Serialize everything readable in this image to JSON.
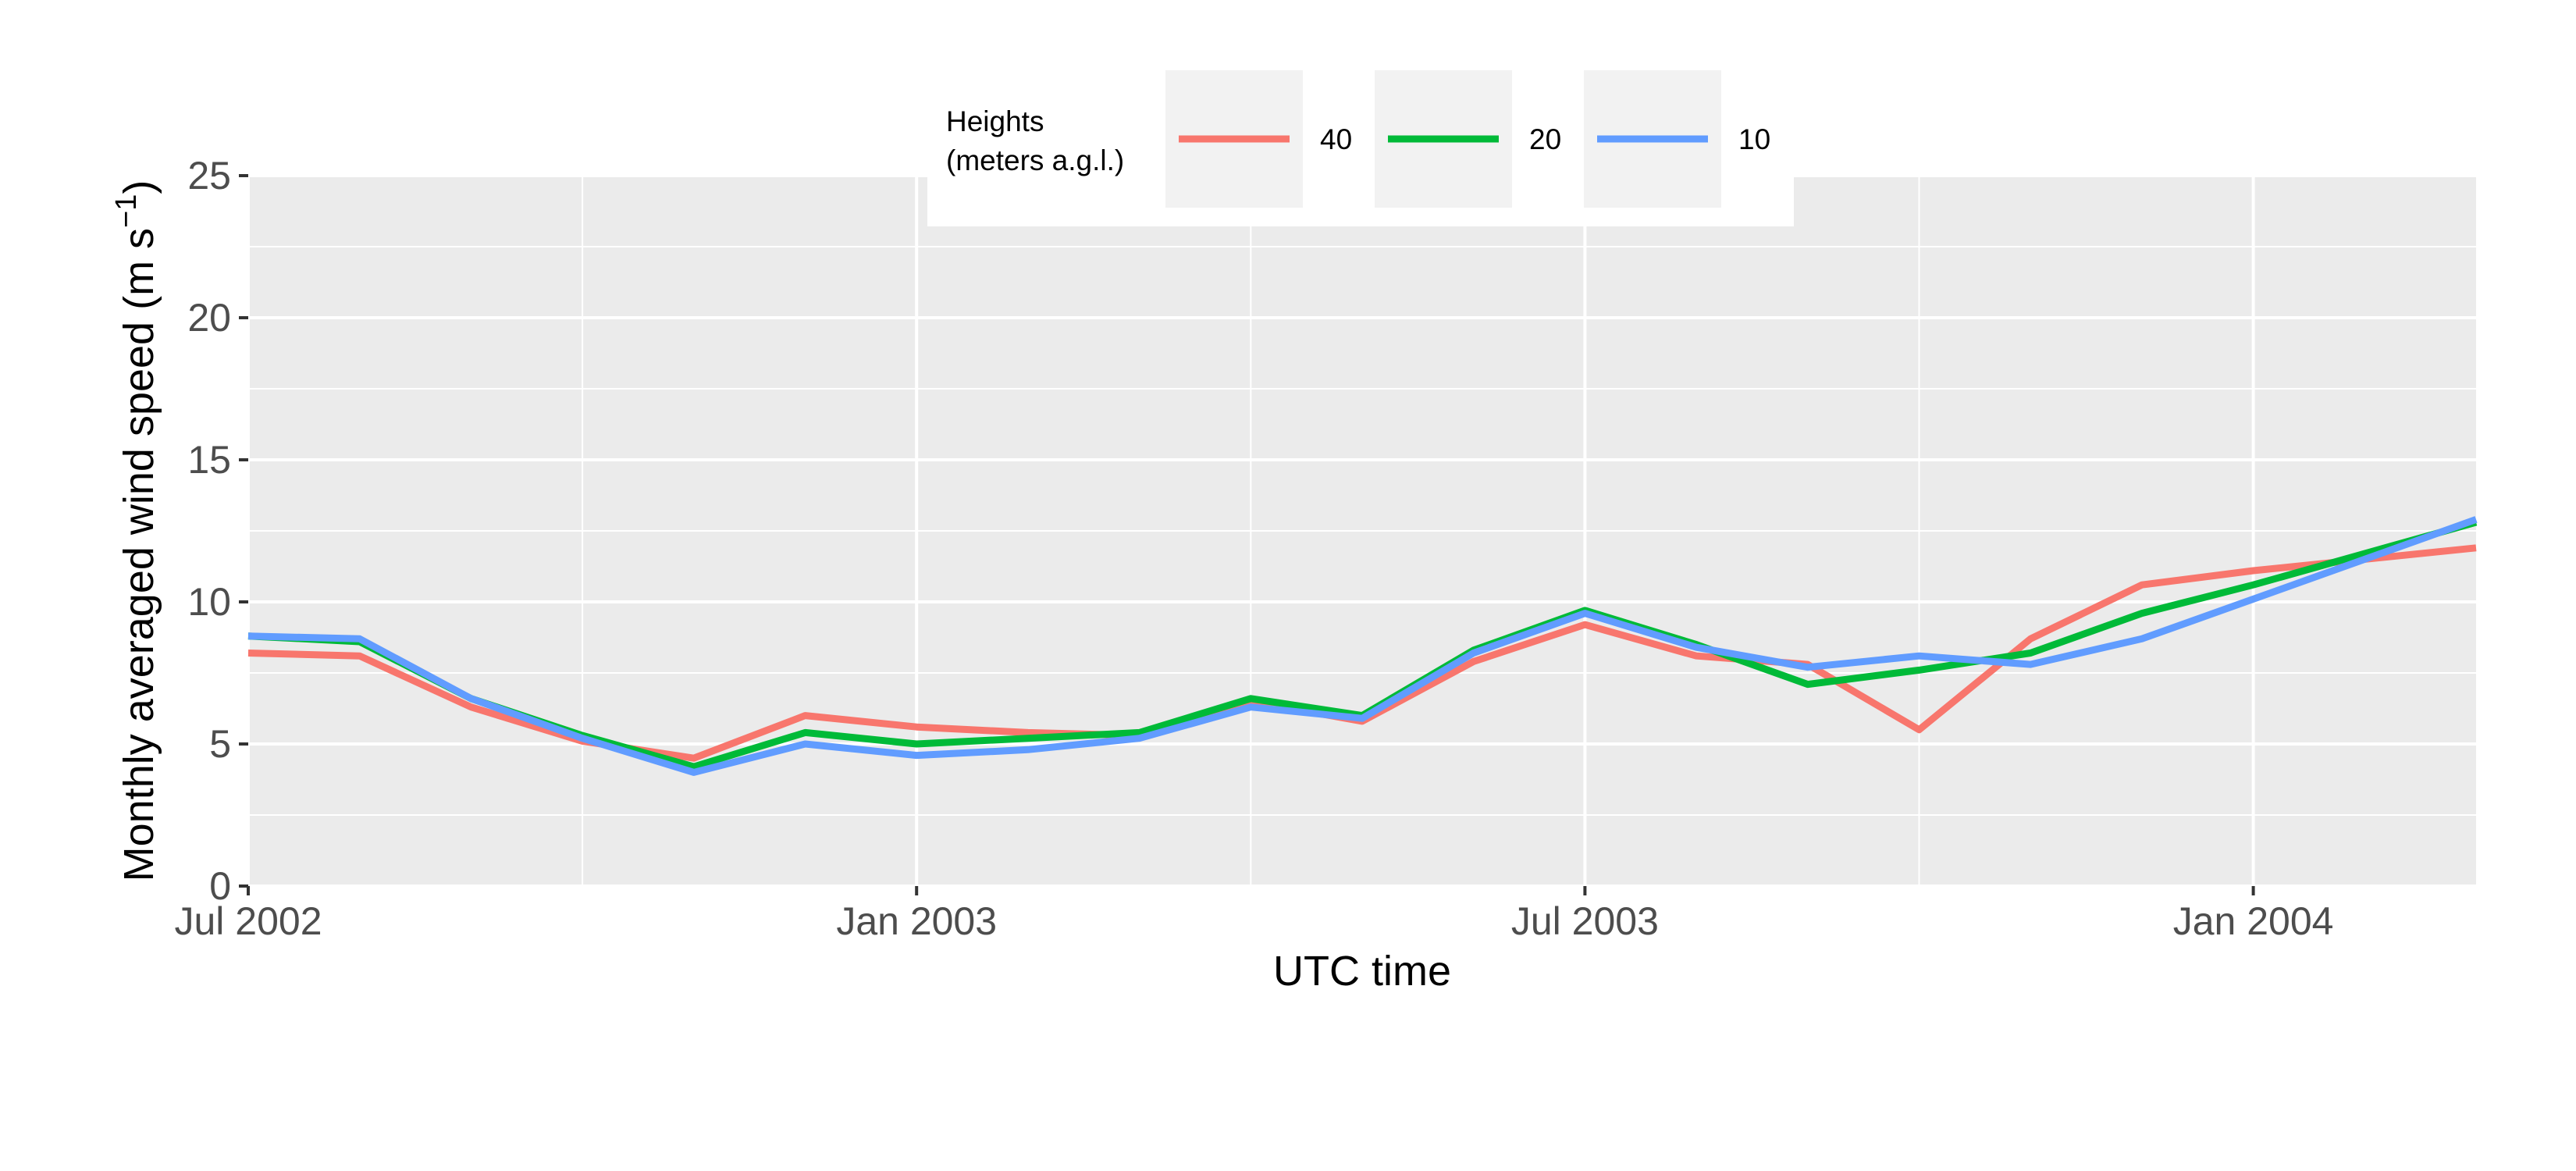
{
  "chart_data": {
    "type": "line",
    "title": "",
    "xlabel": "UTC time",
    "ylabel_main": "Monthly averaged wind speed (m s",
    "ylabel_sup": "−1",
    "ylabel_close": ")",
    "ylim": [
      0,
      25
    ],
    "yticks": [
      0,
      5,
      10,
      15,
      20,
      25
    ],
    "ytick_labels": [
      "0",
      "5",
      "10",
      "15",
      "20",
      "25"
    ],
    "x_month_range": [
      0,
      20
    ],
    "xticks": [
      0,
      6,
      12,
      18
    ],
    "xtick_labels": [
      "Jul 2002",
      "Jan 2003",
      "Jul 2003",
      "Jan 2004"
    ],
    "x_minor_ticks": [
      3,
      9,
      15
    ],
    "x": [
      "2002-07",
      "2002-08",
      "2002-09",
      "2002-10",
      "2002-11",
      "2002-12",
      "2003-01",
      "2003-02",
      "2003-03",
      "2003-04",
      "2003-05",
      "2003-06",
      "2003-07",
      "2003-08",
      "2003-09",
      "2003-10",
      "2003-11",
      "2003-12",
      "2004-01",
      "2004-02",
      "2004-03"
    ],
    "legend": {
      "title_line1": "Heights",
      "title_line2": "(meters a.g.l.)",
      "position": "top"
    },
    "series": [
      {
        "name": "40",
        "color": "#F8766D",
        "values": [
          8.2,
          8.1,
          6.3,
          5.1,
          4.5,
          6.0,
          5.6,
          5.4,
          5.3,
          6.5,
          5.8,
          7.9,
          9.2,
          8.1,
          7.8,
          5.5,
          8.7,
          10.6,
          11.1,
          11.5,
          11.9
        ]
      },
      {
        "name": "20",
        "color": "#00BA38",
        "values": [
          8.8,
          8.6,
          6.6,
          5.3,
          4.2,
          5.4,
          5.0,
          5.2,
          5.4,
          6.6,
          6.0,
          8.3,
          9.7,
          8.5,
          7.1,
          7.6,
          8.2,
          9.6,
          10.6,
          11.7,
          12.8
        ]
      },
      {
        "name": "10",
        "color": "#619CFF",
        "values": [
          8.8,
          8.7,
          6.6,
          5.2,
          4.0,
          5.0,
          4.6,
          4.8,
          5.2,
          6.3,
          5.9,
          8.2,
          9.6,
          8.4,
          7.7,
          8.1,
          7.8,
          8.7,
          10.1,
          11.5,
          12.9
        ]
      }
    ]
  }
}
